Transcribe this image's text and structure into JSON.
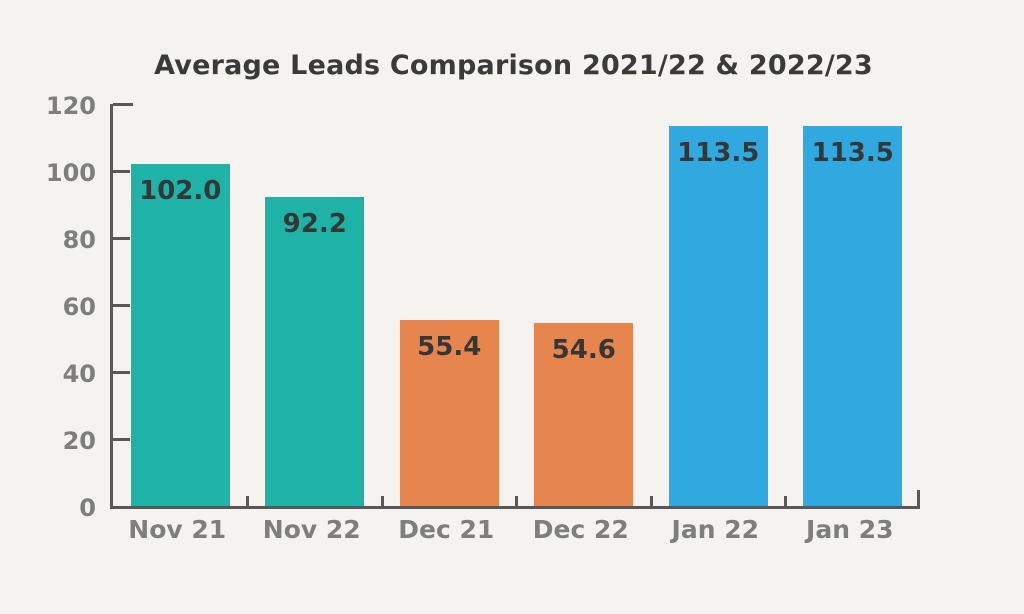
{
  "title": "Average Leads Comparison 2021/22 & 2022/23",
  "colors": {
    "background": "#f4f3f0",
    "axis": "#58585b",
    "axis_label_text": "#7e7e7e",
    "title_text": "#3a3a3a",
    "value_label_text": "#363636",
    "teal": "#1fb2a6",
    "orange": "#e6854e",
    "blue": "#30a9e0"
  },
  "chart_data": {
    "type": "bar",
    "title": "Average Leads Comparison 2021/22 & 2022/23",
    "categories": [
      "Nov 21",
      "Nov 22",
      "Dec 21",
      "Dec 22",
      "Jan 22",
      "Jan 23"
    ],
    "values": [
      102.0,
      92.2,
      55.4,
      54.6,
      113.5,
      113.5
    ],
    "value_labels": [
      "102.0",
      "92.2",
      "55.4",
      "54.6",
      "113.5",
      "113.5"
    ],
    "bar_colors": [
      "#1fb2a6",
      "#1fb2a6",
      "#e6854e",
      "#e6854e",
      "#30a9e0",
      "#30a9e0"
    ],
    "series_groups": [
      {
        "name": "November",
        "color": "#1fb2a6",
        "values": {
          "Nov 21": 102.0,
          "Nov 22": 92.2
        }
      },
      {
        "name": "December",
        "color": "#e6854e",
        "values": {
          "Dec 21": 55.4,
          "Dec 22": 54.6
        }
      },
      {
        "name": "January",
        "color": "#30a9e0",
        "values": {
          "Jan 22": 113.5,
          "Jan 23": 113.5
        }
      }
    ],
    "xlabel": "",
    "ylabel": "",
    "ylim": [
      0,
      120
    ],
    "yticks": [
      0,
      20,
      40,
      60,
      80,
      100,
      120
    ],
    "ytick_labels": [
      "0",
      "20",
      "40",
      "60",
      "80",
      "100",
      "120"
    ],
    "grid": false,
    "legend": "none",
    "value_labels_position": "inside-top",
    "tick_direction": "in"
  }
}
